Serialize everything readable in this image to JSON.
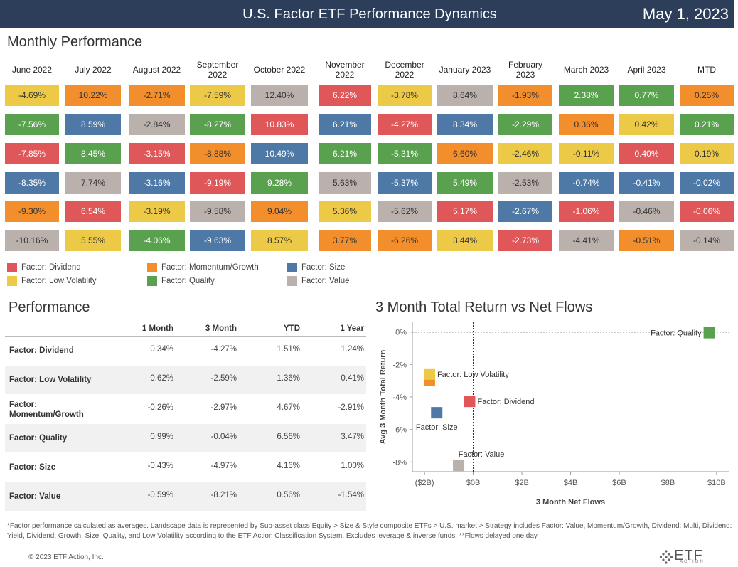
{
  "header": {
    "title": "U.S. Factor ETF Performance Dynamics",
    "date": "May 1, 2023"
  },
  "monthly": {
    "title": "Monthly Performance",
    "months": [
      "June 2022",
      "July 2022",
      "August 2022",
      "September 2022",
      "October 2022",
      "November 2022",
      "December 2022",
      "January 2023",
      "February 2023",
      "March 2023",
      "April 2023",
      "MTD"
    ],
    "colors": {
      "Dividend": "#e05759",
      "Momentum/Growth": "#f28e2c",
      "Size": "#4e79a7",
      "Low Volatility": "#edc948",
      "Quality": "#59a14f",
      "Value": "#bab0ac"
    },
    "grid": [
      [
        {
          "v": "-4.69%",
          "f": "Low Volatility"
        },
        {
          "v": "10.22%",
          "f": "Momentum/Growth"
        },
        {
          "v": "-2.71%",
          "f": "Momentum/Growth"
        },
        {
          "v": "-7.59%",
          "f": "Low Volatility"
        },
        {
          "v": "12.40%",
          "f": "Value"
        },
        {
          "v": "6.22%",
          "f": "Dividend"
        },
        {
          "v": "-3.78%",
          "f": "Low Volatility"
        },
        {
          "v": "8.64%",
          "f": "Value"
        },
        {
          "v": "-1.93%",
          "f": "Momentum/Growth"
        },
        {
          "v": "2.38%",
          "f": "Quality"
        },
        {
          "v": "0.77%",
          "f": "Quality"
        },
        {
          "v": "0.25%",
          "f": "Momentum/Growth"
        }
      ],
      [
        {
          "v": "-7.56%",
          "f": "Quality"
        },
        {
          "v": "8.59%",
          "f": "Size"
        },
        {
          "v": "-2.84%",
          "f": "Value"
        },
        {
          "v": "-8.27%",
          "f": "Quality"
        },
        {
          "v": "10.83%",
          "f": "Dividend"
        },
        {
          "v": "6.21%",
          "f": "Size"
        },
        {
          "v": "-4.27%",
          "f": "Dividend"
        },
        {
          "v": "8.34%",
          "f": "Size"
        },
        {
          "v": "-2.29%",
          "f": "Quality"
        },
        {
          "v": "0.36%",
          "f": "Momentum/Growth"
        },
        {
          "v": "0.42%",
          "f": "Low Volatility"
        },
        {
          "v": "0.21%",
          "f": "Quality"
        }
      ],
      [
        {
          "v": "-7.85%",
          "f": "Dividend"
        },
        {
          "v": "8.45%",
          "f": "Quality"
        },
        {
          "v": "-3.15%",
          "f": "Dividend"
        },
        {
          "v": "-8.88%",
          "f": "Momentum/Growth"
        },
        {
          "v": "10.49%",
          "f": "Size"
        },
        {
          "v": "6.21%",
          "f": "Quality"
        },
        {
          "v": "-5.31%",
          "f": "Quality"
        },
        {
          "v": "6.60%",
          "f": "Momentum/Growth"
        },
        {
          "v": "-2.46%",
          "f": "Low Volatility"
        },
        {
          "v": "-0.11%",
          "f": "Low Volatility"
        },
        {
          "v": "0.40%",
          "f": "Dividend"
        },
        {
          "v": "0.19%",
          "f": "Low Volatility"
        }
      ],
      [
        {
          "v": "-8.35%",
          "f": "Size"
        },
        {
          "v": "7.74%",
          "f": "Value"
        },
        {
          "v": "-3.16%",
          "f": "Size"
        },
        {
          "v": "-9.19%",
          "f": "Dividend"
        },
        {
          "v": "9.28%",
          "f": "Quality"
        },
        {
          "v": "5.63%",
          "f": "Value"
        },
        {
          "v": "-5.37%",
          "f": "Size"
        },
        {
          "v": "5.49%",
          "f": "Quality"
        },
        {
          "v": "-2.53%",
          "f": "Value"
        },
        {
          "v": "-0.74%",
          "f": "Size"
        },
        {
          "v": "-0.41%",
          "f": "Size"
        },
        {
          "v": "-0.02%",
          "f": "Size"
        }
      ],
      [
        {
          "v": "-9.30%",
          "f": "Momentum/Growth"
        },
        {
          "v": "6.54%",
          "f": "Dividend"
        },
        {
          "v": "-3.19%",
          "f": "Low Volatility"
        },
        {
          "v": "-9.58%",
          "f": "Value"
        },
        {
          "v": "9.04%",
          "f": "Momentum/Growth"
        },
        {
          "v": "5.36%",
          "f": "Low Volatility"
        },
        {
          "v": "-5.62%",
          "f": "Value"
        },
        {
          "v": "5.17%",
          "f": "Dividend"
        },
        {
          "v": "-2.67%",
          "f": "Size"
        },
        {
          "v": "-1.06%",
          "f": "Dividend"
        },
        {
          "v": "-0.46%",
          "f": "Value"
        },
        {
          "v": "-0.06%",
          "f": "Dividend"
        }
      ],
      [
        {
          "v": "-10.16%",
          "f": "Value"
        },
        {
          "v": "5.55%",
          "f": "Low Volatility"
        },
        {
          "v": "-4.06%",
          "f": "Quality"
        },
        {
          "v": "-9.63%",
          "f": "Size"
        },
        {
          "v": "8.57%",
          "f": "Low Volatility"
        },
        {
          "v": "3.77%",
          "f": "Momentum/Growth"
        },
        {
          "v": "-6.26%",
          "f": "Momentum/Growth"
        },
        {
          "v": "3.44%",
          "f": "Low Volatility"
        },
        {
          "v": "-2.73%",
          "f": "Dividend"
        },
        {
          "v": "-4.41%",
          "f": "Value"
        },
        {
          "v": "-0.51%",
          "f": "Momentum/Growth"
        },
        {
          "v": "-0.14%",
          "f": "Value"
        }
      ]
    ],
    "legend": [
      {
        "label": "Factor: Dividend",
        "f": "Dividend"
      },
      {
        "label": "Factor: Momentum/Growth",
        "f": "Momentum/Growth"
      },
      {
        "label": "Factor: Size",
        "f": "Size"
      },
      {
        "label": "Factor: Low Volatility",
        "f": "Low Volatility"
      },
      {
        "label": "Factor: Quality",
        "f": "Quality"
      },
      {
        "label": "Factor: Value",
        "f": "Value"
      }
    ]
  },
  "performance": {
    "title": "Performance",
    "columns": [
      "1 Month",
      "3 Month",
      "YTD",
      "1 Year"
    ],
    "rows": [
      {
        "label": "Factor: Dividend",
        "values": [
          "0.34%",
          "-4.27%",
          "1.51%",
          "1.24%"
        ]
      },
      {
        "label": "Factor: Low Volatility",
        "values": [
          "0.62%",
          "-2.59%",
          "1.36%",
          "0.41%"
        ]
      },
      {
        "label": "Factor: Momentum/Growth",
        "values": [
          "-0.26%",
          "-2.97%",
          "4.67%",
          "-2.91%"
        ]
      },
      {
        "label": "Factor: Quality",
        "values": [
          "0.99%",
          "-0.04%",
          "6.56%",
          "3.47%"
        ]
      },
      {
        "label": "Factor: Size",
        "values": [
          "-0.43%",
          "-4.97%",
          "4.16%",
          "1.00%"
        ]
      },
      {
        "label": "Factor: Value",
        "values": [
          "-0.59%",
          "-8.21%",
          "0.56%",
          "-1.54%"
        ]
      }
    ]
  },
  "chart_data": {
    "type": "scatter",
    "title": "3 Month Total Return vs Net Flows",
    "xlabel": "3 Month Net Flows",
    "ylabel": "Avg 3 Month Total Return",
    "xlim": [
      -2.5,
      10.5
    ],
    "ylim": [
      -8.6,
      0.6
    ],
    "x_ticks": [
      -2,
      0,
      2,
      4,
      6,
      8,
      10
    ],
    "x_tick_labels": [
      "($2B)",
      "$0B",
      "$2B",
      "$4B",
      "$6B",
      "$8B",
      "$10B"
    ],
    "y_ticks": [
      0,
      -2,
      -4,
      -6,
      -8
    ],
    "y_tick_labels": [
      "0%",
      "-2%",
      "-4%",
      "-6%",
      "-8%"
    ],
    "grid": false,
    "reference_lines": {
      "x": 0,
      "y": 0
    },
    "points": [
      {
        "name": "Factor: Quality",
        "x": 9.7,
        "y": -0.04,
        "f": "Quality",
        "label": "Factor: Quality",
        "anchor": "left"
      },
      {
        "name": "Factor: Momentum/Growth",
        "x": -1.8,
        "y": -2.97,
        "f": "Momentum/Growth",
        "label": "",
        "anchor": "right"
      },
      {
        "name": "Factor: Low Volatility",
        "x": -1.8,
        "y": -2.59,
        "f": "Low Volatility",
        "label": "Factor: Low Volatility",
        "anchor": "right"
      },
      {
        "name": "Factor: Dividend",
        "x": -0.15,
        "y": -4.27,
        "f": "Dividend",
        "label": "Factor: Dividend",
        "anchor": "right"
      },
      {
        "name": "Factor: Size",
        "x": -1.5,
        "y": -4.97,
        "f": "Size",
        "label": "Factor: Size",
        "anchor": "below"
      },
      {
        "name": "Factor: Value",
        "x": -0.6,
        "y": -8.21,
        "f": "Value",
        "label": "Factor: Value",
        "anchor": "above"
      }
    ]
  },
  "footnote": "*Factor performance calculated as averages. Landscape data is represented by Sub-asset class Equity > Size & Style composite ETFs > U.S. market > Strategy includes Factor: Value, Momentum/Growth, Dividend: Multi, Dividend: Yield, Dividend: Growth, Size, Quality, and Low Volatility according to the ETF Action Classification System. Excludes leverage & inverse funds. **Flows delayed one day.",
  "copyright": "© 2023 ETF Action, Inc.",
  "logo": {
    "text": "ETF",
    "sub": "ACTION",
    "icon": "diamond-dots-icon"
  }
}
